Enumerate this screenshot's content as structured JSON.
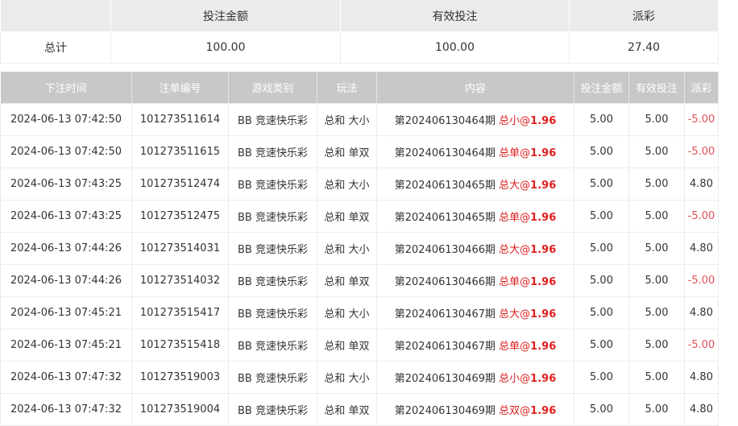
{
  "summary": {
    "headers": [
      "",
      "投注金额",
      "有效投注",
      "派彩"
    ],
    "label": "总计",
    "bet": "100.00",
    "valid": "100.00",
    "payout": "27.40"
  },
  "table": {
    "headers": [
      "下注时间",
      "注单编号",
      "游戏类别",
      "玩法",
      "内容",
      "投注金额",
      "有效投注",
      "派彩"
    ],
    "rows": [
      {
        "time": "2024-06-13 07:42:50",
        "id": "101273511614",
        "game": "BB 竞速快乐彩",
        "play": "总和 大小",
        "period": "第202406130464期",
        "pick": "总小",
        "odds_sep": "@",
        "odds": "1.96",
        "bet": "5.00",
        "valid": "5.00",
        "payout": "-5.00",
        "neg": true
      },
      {
        "time": "2024-06-13 07:42:50",
        "id": "101273511615",
        "game": "BB 竞速快乐彩",
        "play": "总和 单双",
        "period": "第202406130464期",
        "pick": "总单",
        "odds_sep": "@",
        "odds": "1.96",
        "bet": "5.00",
        "valid": "5.00",
        "payout": "-5.00",
        "neg": true
      },
      {
        "time": "2024-06-13 07:43:25",
        "id": "101273512474",
        "game": "BB 竞速快乐彩",
        "play": "总和 大小",
        "period": "第202406130465期",
        "pick": "总大",
        "odds_sep": "@",
        "odds": "1.96",
        "bet": "5.00",
        "valid": "5.00",
        "payout": "4.80",
        "neg": false
      },
      {
        "time": "2024-06-13 07:43:25",
        "id": "101273512475",
        "game": "BB 竞速快乐彩",
        "play": "总和 单双",
        "period": "第202406130465期",
        "pick": "总单",
        "odds_sep": "@",
        "odds": "1.96",
        "bet": "5.00",
        "valid": "5.00",
        "payout": "-5.00",
        "neg": true
      },
      {
        "time": "2024-06-13 07:44:26",
        "id": "101273514031",
        "game": "BB 竞速快乐彩",
        "play": "总和 大小",
        "period": "第202406130466期",
        "pick": "总大",
        "odds_sep": "@",
        "odds": "1.96",
        "bet": "5.00",
        "valid": "5.00",
        "payout": "4.80",
        "neg": false
      },
      {
        "time": "2024-06-13 07:44:26",
        "id": "101273514032",
        "game": "BB 竞速快乐彩",
        "play": "总和 单双",
        "period": "第202406130466期",
        "pick": "总单",
        "odds_sep": "@",
        "odds": "1.96",
        "bet": "5.00",
        "valid": "5.00",
        "payout": "-5.00",
        "neg": true
      },
      {
        "time": "2024-06-13 07:45:21",
        "id": "101273515417",
        "game": "BB 竞速快乐彩",
        "play": "总和 大小",
        "period": "第202406130467期",
        "pick": "总大",
        "odds_sep": "@",
        "odds": "1.96",
        "bet": "5.00",
        "valid": "5.00",
        "payout": "4.80",
        "neg": false
      },
      {
        "time": "2024-06-13 07:45:21",
        "id": "101273515418",
        "game": "BB 竞速快乐彩",
        "play": "总和 单双",
        "period": "第202406130467期",
        "pick": "总单",
        "odds_sep": "@",
        "odds": "1.96",
        "bet": "5.00",
        "valid": "5.00",
        "payout": "-5.00",
        "neg": true
      },
      {
        "time": "2024-06-13 07:47:32",
        "id": "101273519003",
        "game": "BB 竞速快乐彩",
        "play": "总和 大小",
        "period": "第202406130469期",
        "pick": "总小",
        "odds_sep": "@",
        "odds": "1.96",
        "bet": "5.00",
        "valid": "5.00",
        "payout": "4.80",
        "neg": false
      },
      {
        "time": "2024-06-13 07:47:32",
        "id": "101273519004",
        "game": "BB 竞速快乐彩",
        "play": "总和 单双",
        "period": "第202406130469期",
        "pick": "总双",
        "odds_sep": "@",
        "odds": "1.96",
        "bet": "5.00",
        "valid": "5.00",
        "payout": "4.80",
        "neg": false
      }
    ]
  }
}
